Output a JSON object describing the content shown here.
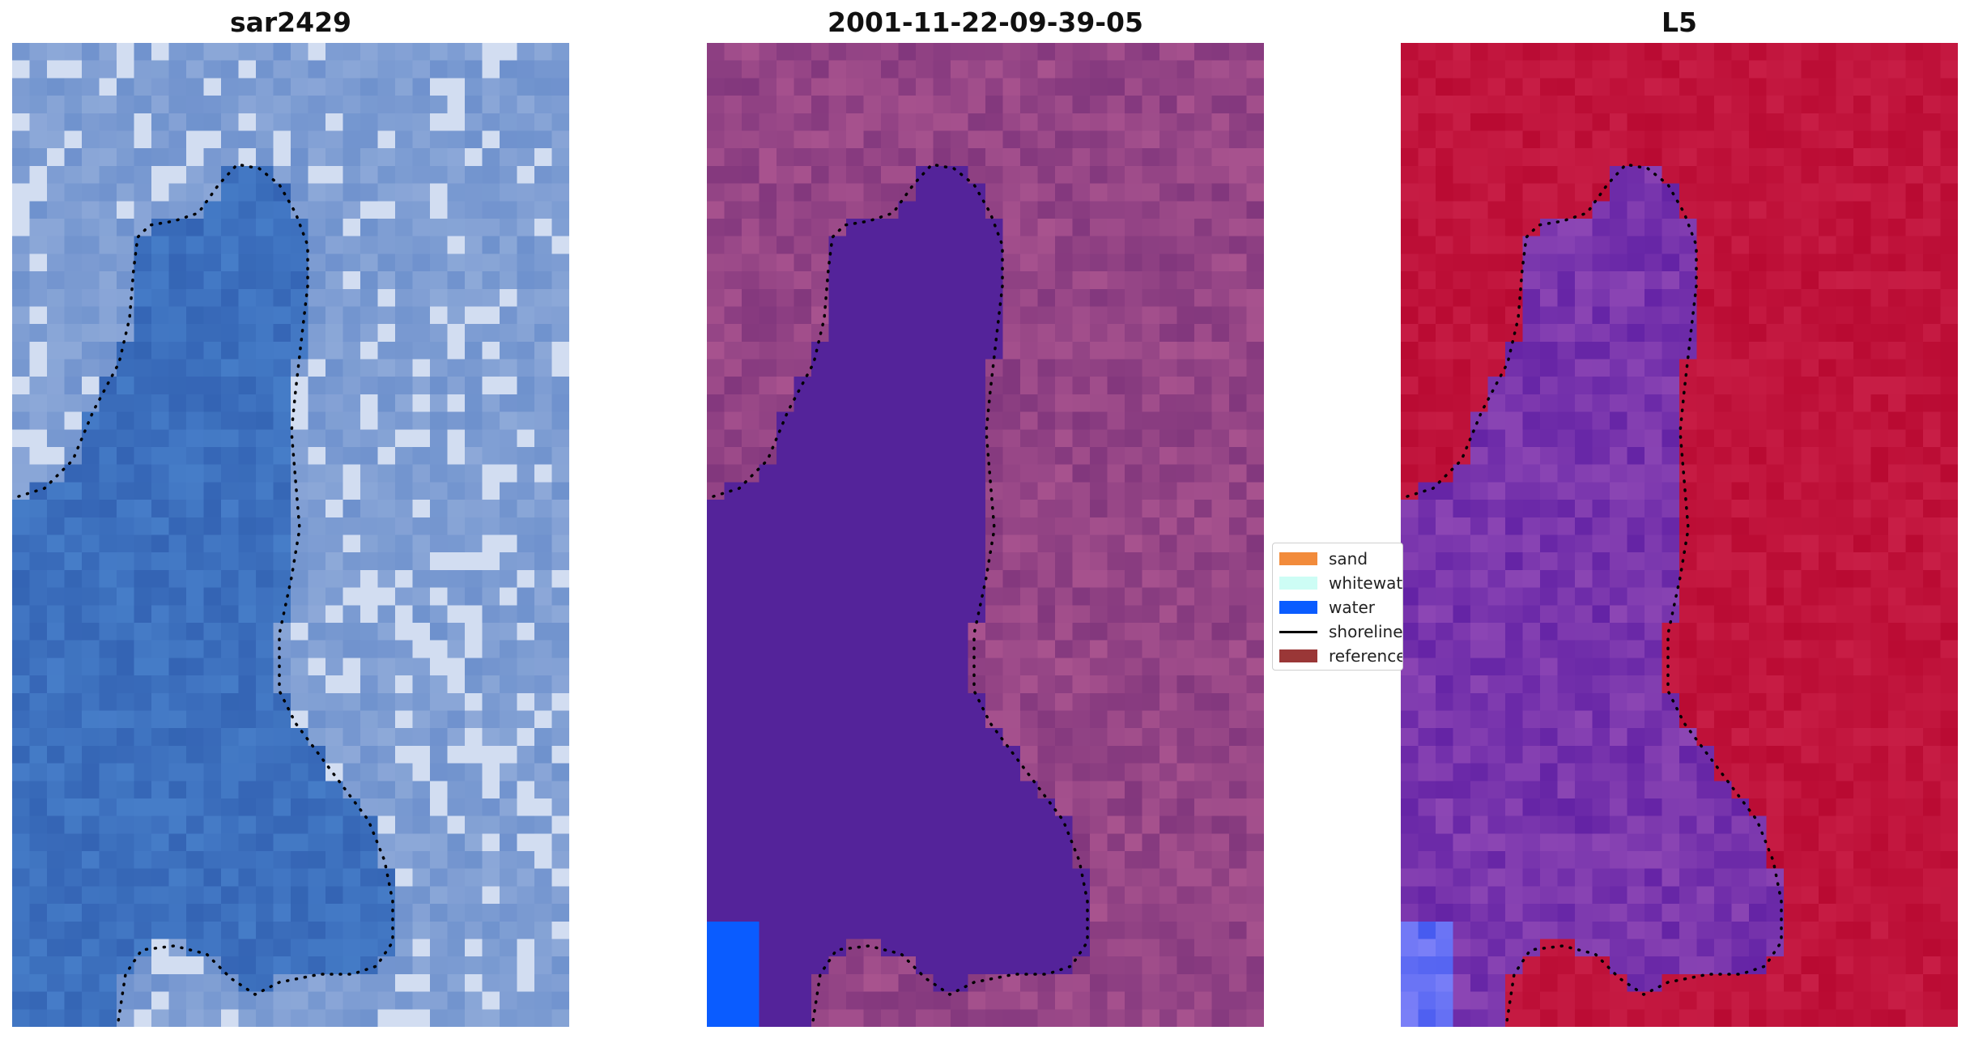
{
  "panels": [
    {
      "title": "sar2429"
    },
    {
      "title": "2001-11-22-09-39-05"
    },
    {
      "title": "L5"
    }
  ],
  "legend": {
    "items": [
      {
        "label": "sand",
        "color": "#f28b3b",
        "kind": "patch"
      },
      {
        "label": "whitewater",
        "color": "#cdfdf5",
        "kind": "patch"
      },
      {
        "label": "water",
        "color": "#0a5cff",
        "kind": "patch"
      },
      {
        "label": "shoreline",
        "color": "#000000",
        "kind": "line"
      },
      {
        "label": "reference",
        "color": "#9a3737",
        "kind": "patch"
      }
    ]
  },
  "colors": {
    "classified_water_body": "#54239a",
    "classified_land": "#8f4688",
    "mndwi_land": "#c00a33",
    "mndwi_water": "#7a2fb0",
    "rgb_water": "#3a6fbf",
    "rgb_land": "#8aa4d6"
  }
}
